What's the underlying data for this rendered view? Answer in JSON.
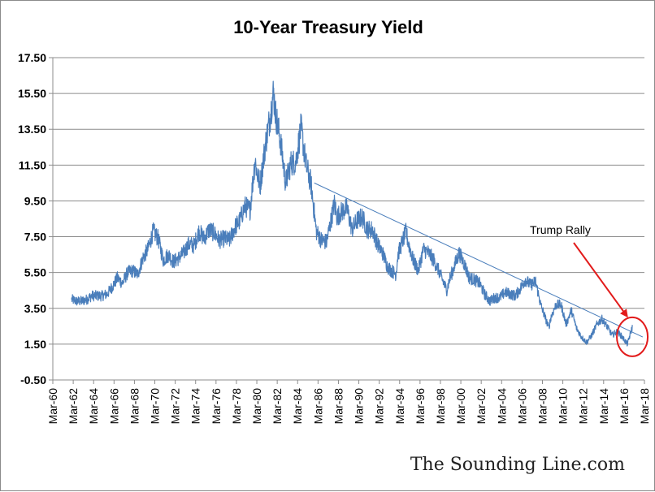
{
  "chart_data": {
    "type": "line",
    "title": "10-Year Treasury Yield",
    "xlabel": "",
    "ylabel": "",
    "ylim": [
      -0.5,
      17.5
    ],
    "yticks": [
      "17.50",
      "15.50",
      "13.50",
      "11.50",
      "9.50",
      "7.50",
      "5.50",
      "3.50",
      "1.50",
      "-0.50"
    ],
    "xticks": [
      "Mar-60",
      "Mar-62",
      "Mar-64",
      "Mar-66",
      "Mar-68",
      "Mar-70",
      "Mar-72",
      "Mar-74",
      "Mar-76",
      "Mar-78",
      "Mar-80",
      "Mar-82",
      "Mar-84",
      "Mar-86",
      "Mar-88",
      "Mar-90",
      "Mar-92",
      "Mar-94",
      "Mar-96",
      "Mar-98",
      "Mar-00",
      "Mar-02",
      "Mar-04",
      "Mar-06",
      "Mar-08",
      "Mar-10",
      "Mar-12",
      "Mar-14",
      "Mar-16",
      "Mar-18"
    ],
    "xlim": [
      1960.17,
      2018.17
    ],
    "grid": "horizontal",
    "line_color": "#4a7ebb",
    "series": [
      {
        "x": [
          1962.0,
          1962.5,
          1963.0,
          1963.5,
          1964.0,
          1964.5,
          1965.0,
          1965.5,
          1966.0,
          1966.5,
          1967.0,
          1967.5,
          1968.0,
          1968.5,
          1969.0,
          1969.5,
          1970.0,
          1970.5,
          1971.0,
          1971.5,
          1972.0,
          1972.5,
          1973.0,
          1973.5,
          1974.0,
          1974.5,
          1975.0,
          1975.5,
          1976.0,
          1976.5,
          1977.0,
          1977.5,
          1978.0,
          1978.5,
          1979.0,
          1979.5,
          1980.0,
          1980.2,
          1980.5,
          1981.0,
          1981.5,
          1981.8,
          1982.0,
          1982.5,
          1983.0,
          1983.5,
          1984.0,
          1984.5,
          1985.0,
          1985.5,
          1986.0,
          1986.5,
          1987.0,
          1987.8,
          1988.0,
          1988.5,
          1989.0,
          1989.5,
          1990.0,
          1990.5,
          1991.0,
          1991.5,
          1992.0,
          1992.5,
          1993.0,
          1993.8,
          1994.0,
          1994.8,
          1995.0,
          1995.5,
          1996.0,
          1996.5,
          1997.0,
          1997.5,
          1998.0,
          1998.8,
          1999.0,
          1999.5,
          2000.0,
          2000.5,
          2001.0,
          2001.5,
          2002.0,
          2002.5,
          2003.0,
          2003.5,
          2004.0,
          2004.5,
          2005.0,
          2005.5,
          2006.0,
          2006.5,
          2007.0,
          2007.5,
          2008.0,
          2008.8,
          2009.0,
          2009.5,
          2010.0,
          2010.5,
          2011.0,
          2011.5,
          2012.0,
          2012.5,
          2013.0,
          2013.5,
          2014.0,
          2014.5,
          2015.0,
          2015.5,
          2016.0,
          2016.5,
          2016.9,
          2017.0
        ],
        "values": [
          4.0,
          3.9,
          3.9,
          4.0,
          4.2,
          4.2,
          4.2,
          4.3,
          4.7,
          5.2,
          4.9,
          5.5,
          5.6,
          5.4,
          6.3,
          6.8,
          7.8,
          7.4,
          6.2,
          6.5,
          6.1,
          6.3,
          6.6,
          7.1,
          7.0,
          7.8,
          7.4,
          7.9,
          7.7,
          7.3,
          7.4,
          7.3,
          8.0,
          8.4,
          9.2,
          9.0,
          11.8,
          11.0,
          10.4,
          12.6,
          14.3,
          15.6,
          14.4,
          12.8,
          10.5,
          11.6,
          11.7,
          13.6,
          11.5,
          10.4,
          7.8,
          7.3,
          7.2,
          9.4,
          8.6,
          8.9,
          9.1,
          7.9,
          8.4,
          8.6,
          7.9,
          7.9,
          7.1,
          6.6,
          5.8,
          5.4,
          6.5,
          7.8,
          7.2,
          6.2,
          5.6,
          6.8,
          6.6,
          6.2,
          5.6,
          4.5,
          5.0,
          5.8,
          6.6,
          6.0,
          5.2,
          5.1,
          4.9,
          4.3,
          3.9,
          4.1,
          4.1,
          4.4,
          4.3,
          4.2,
          4.6,
          5.1,
          4.8,
          5.0,
          3.7,
          2.4,
          3.0,
          3.7,
          3.7,
          2.6,
          3.4,
          2.4,
          1.9,
          1.6,
          2.0,
          2.6,
          2.9,
          2.5,
          2.0,
          2.2,
          1.9,
          1.5,
          2.3,
          2.5
        ]
      }
    ],
    "trendline": {
      "x": [
        1985.8,
        2018.0
      ],
      "values": [
        10.5,
        1.9
      ]
    },
    "annotation": {
      "text": "Trump Rally",
      "at_x": 2016.9,
      "at_y": 2.0
    },
    "watermark": "The Sounding Line.com"
  }
}
